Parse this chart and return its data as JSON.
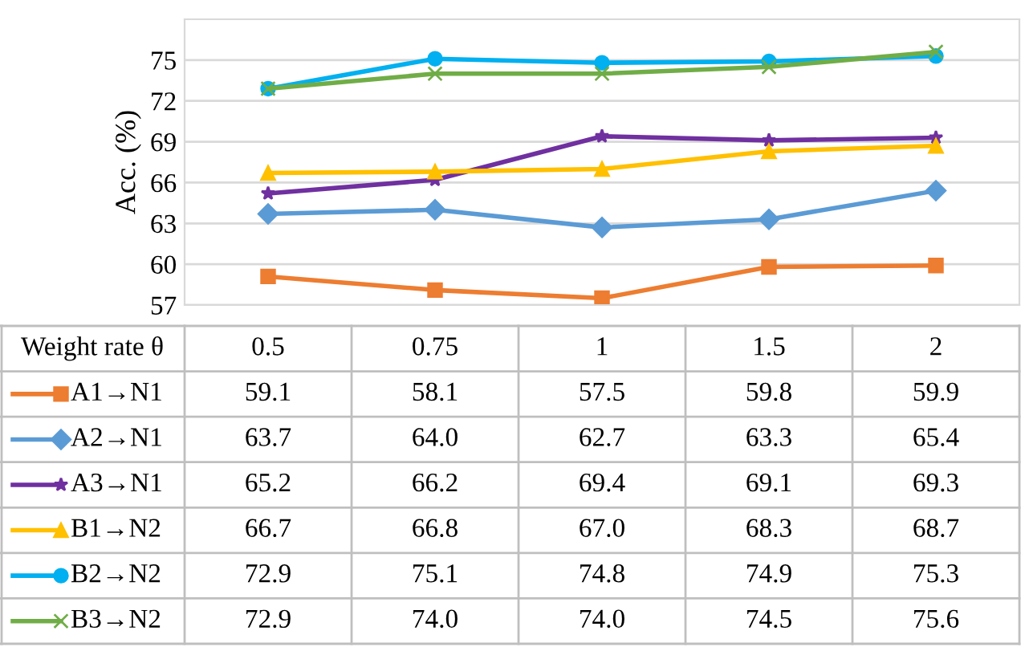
{
  "chart_data": {
    "type": "line",
    "ylabel": "Acc. (%)",
    "xlabel": "Weight rate θ",
    "categories": [
      "0.5",
      "0.75",
      "1",
      "1.5",
      "2"
    ],
    "ylim": [
      57,
      78
    ],
    "yticks": [
      57,
      60,
      63,
      66,
      69,
      72,
      75
    ],
    "grid": "y",
    "legend": "bottom",
    "series": [
      {
        "name": "A1→N1",
        "color": "#ed7d31",
        "marker": "square",
        "values": [
          59.1,
          58.1,
          57.5,
          59.8,
          59.9
        ],
        "value_labels": [
          "59.1",
          "58.1",
          "57.5",
          "59.8",
          "59.9"
        ]
      },
      {
        "name": "A2→N1",
        "color": "#5b9bd5",
        "marker": "diamond",
        "values": [
          63.7,
          64.0,
          62.7,
          63.3,
          65.4
        ],
        "value_labels": [
          "63.7",
          "64.0",
          "62.7",
          "63.3",
          "65.4"
        ]
      },
      {
        "name": "A3→N1",
        "color": "#7030a0",
        "marker": "star",
        "values": [
          65.2,
          66.2,
          69.4,
          69.1,
          69.3
        ],
        "value_labels": [
          "65.2",
          "66.2",
          "69.4",
          "69.1",
          "69.3"
        ]
      },
      {
        "name": "B1→N2",
        "color": "#ffc000",
        "marker": "triangle",
        "values": [
          66.7,
          66.8,
          67.0,
          68.3,
          68.7
        ],
        "value_labels": [
          "66.7",
          "66.8",
          "67.0",
          "68.3",
          "68.7"
        ]
      },
      {
        "name": "B2→N2",
        "color": "#00b0f0",
        "marker": "circle",
        "values": [
          72.9,
          75.1,
          74.8,
          74.9,
          75.3
        ],
        "value_labels": [
          "72.9",
          "75.1",
          "74.8",
          "74.9",
          "75.3"
        ]
      },
      {
        "name": "B3→N2",
        "color": "#70ad47",
        "marker": "cross",
        "values": [
          72.9,
          74.0,
          74.0,
          74.5,
          75.6
        ],
        "value_labels": [
          "72.9",
          "74.0",
          "74.0",
          "74.5",
          "75.6"
        ]
      }
    ]
  }
}
